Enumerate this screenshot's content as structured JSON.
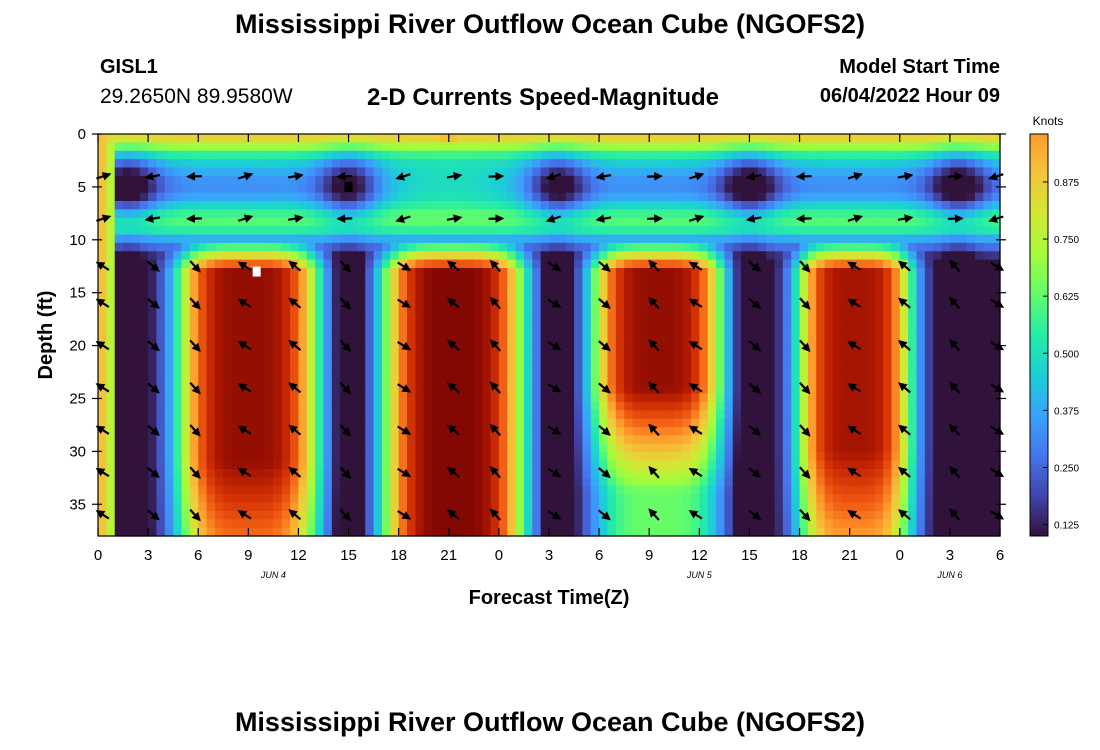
{
  "header": {
    "title": "Mississippi River Outflow Ocean Cube (NGOFS2)",
    "station_id": "GISL1",
    "station_coords": "29.2650N  89.9580W",
    "subtitle": "2-D Currents Speed-Magnitude",
    "model_start_label": "Model Start Time",
    "model_start_value": "06/04/2022 Hour 09"
  },
  "footer": {
    "title": "Mississippi River Outflow Ocean Cube (NGOFS2)"
  },
  "chart_data": {
    "type": "heatmap",
    "title": "2-D Currents Speed-Magnitude",
    "xlabel": "Forecast Time(Z)",
    "ylabel": "Depth (ft)",
    "x_range_hours": [
      0,
      54
    ],
    "y_range_ft": [
      0,
      38
    ],
    "x_ticks": [
      {
        "hour": 0,
        "label": "0"
      },
      {
        "hour": 3,
        "label": "3"
      },
      {
        "hour": 6,
        "label": "6"
      },
      {
        "hour": 9,
        "label": "9"
      },
      {
        "hour": 12,
        "label": "12"
      },
      {
        "hour": 15,
        "label": "15"
      },
      {
        "hour": 18,
        "label": "18"
      },
      {
        "hour": 21,
        "label": "21"
      },
      {
        "hour": 24,
        "label": "0"
      },
      {
        "hour": 27,
        "label": "3"
      },
      {
        "hour": 30,
        "label": "6"
      },
      {
        "hour": 33,
        "label": "9"
      },
      {
        "hour": 36,
        "label": "12"
      },
      {
        "hour": 39,
        "label": "15"
      },
      {
        "hour": 42,
        "label": "18"
      },
      {
        "hour": 45,
        "label": "21"
      },
      {
        "hour": 48,
        "label": "0"
      },
      {
        "hour": 51,
        "label": "3"
      },
      {
        "hour": 54,
        "label": "6"
      }
    ],
    "y_ticks": [
      {
        "value": 0,
        "label": "0"
      },
      {
        "value": 5,
        "label": "5"
      },
      {
        "value": 10,
        "label": "10"
      },
      {
        "value": 15,
        "label": "15"
      },
      {
        "value": 20,
        "label": "20"
      },
      {
        "value": 25,
        "label": "25"
      },
      {
        "value": 30,
        "label": "30"
      },
      {
        "value": 35,
        "label": "35"
      }
    ],
    "date_labels": [
      {
        "hour": 10.5,
        "label": "JUN 4"
      },
      {
        "hour": 36,
        "label": "JUN 5"
      },
      {
        "hour": 51,
        "label": "JUN 6"
      }
    ],
    "colorbar": {
      "title": "Knots",
      "range": [
        0.1,
        0.98
      ],
      "ticks": [
        0.125,
        0.25,
        0.375,
        0.5,
        0.625,
        0.75,
        0.875
      ],
      "tick_labels": [
        "0.125",
        "0.250",
        "0.375",
        "0.500",
        "0.625",
        "0.750",
        "0.875"
      ]
    },
    "flood_max_hours": [
      9,
      21.3,
      33.5,
      45.3
    ],
    "slack_hours": [
      1.8,
      15,
      27.5,
      39,
      51.5
    ],
    "arrow_hours": [
      0.3,
      3.3,
      5.8,
      8.8,
      11.8,
      14.8,
      18.3,
      21.3,
      23.8,
      27.3,
      30.3,
      33.3,
      35.8,
      39.3,
      42.3,
      45.3,
      48.3,
      51.3,
      53.8
    ],
    "arrow_depths_ft": [
      4,
      8,
      12.5,
      16,
      20,
      24,
      28,
      32,
      36
    ],
    "markers": [
      {
        "hour": 9.5,
        "depth": 13,
        "color": "#ffffff"
      },
      {
        "hour": 15,
        "depth": 5,
        "color": "#000000"
      }
    ]
  }
}
